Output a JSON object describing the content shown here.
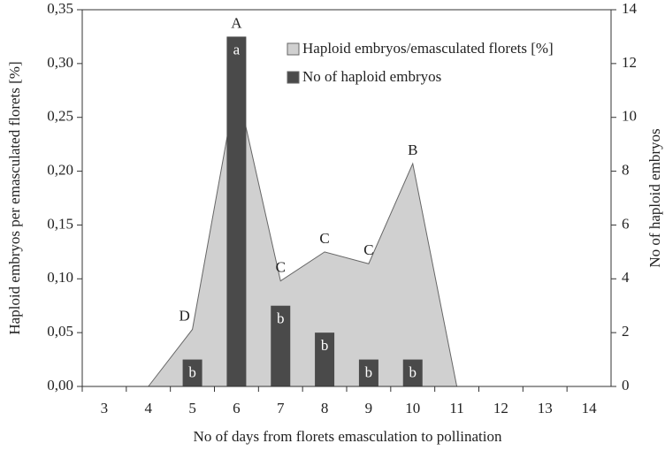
{
  "chart_data": {
    "type": "bar-area",
    "x_label": "No of days from florets emasculation to pollination",
    "y_label": "Haploid embryos per emasculated florets [%]",
    "y2_label": "No of haploid embryos",
    "categories": [
      "3",
      "4",
      "5",
      "6",
      "7",
      "8",
      "9",
      "10",
      "11",
      "12",
      "13",
      "14"
    ],
    "series": [
      {
        "name": "Haploid embryos/emasculated florets [%]",
        "kind": "area",
        "color": "#d0d0d0",
        "values": [
          null,
          0,
          0.053,
          0.28,
          0.098,
          0.125,
          0.114,
          0.207,
          0,
          null,
          null,
          null
        ]
      },
      {
        "name": "No of haploid embryos",
        "kind": "bar",
        "axis": "y2",
        "color": "#4a4a4a",
        "values": [
          0,
          0,
          1,
          13,
          3,
          2,
          1,
          1,
          0,
          0,
          0,
          0
        ]
      }
    ],
    "area_letters": [
      {
        "category": "5",
        "text": "D"
      },
      {
        "category": "6",
        "text": "A"
      },
      {
        "category": "7",
        "text": "C"
      },
      {
        "category": "8",
        "text": "C"
      },
      {
        "category": "9",
        "text": "C"
      },
      {
        "category": "10",
        "text": "B"
      }
    ],
    "bar_letters": [
      {
        "category": "5",
        "text": "b"
      },
      {
        "category": "6",
        "text": "a"
      },
      {
        "category": "7",
        "text": "b"
      },
      {
        "category": "8",
        "text": "b"
      },
      {
        "category": "9",
        "text": "b"
      },
      {
        "category": "10",
        "text": "b"
      }
    ],
    "ylim": [
      0,
      0.35
    ],
    "yticks": [
      {
        "value": 0,
        "label": "0,00"
      },
      {
        "value": 0.05,
        "label": "0,05"
      },
      {
        "value": 0.1,
        "label": "0,10"
      },
      {
        "value": 0.15,
        "label": "0,15"
      },
      {
        "value": 0.2,
        "label": "0,20"
      },
      {
        "value": 0.25,
        "label": "0,25"
      },
      {
        "value": 0.3,
        "label": "0,30"
      },
      {
        "value": 0.35,
        "label": "0,35"
      }
    ],
    "y2lim": [
      0,
      14
    ],
    "y2ticks": [
      0,
      2,
      4,
      6,
      8,
      10,
      12,
      14
    ],
    "legend": "top-right"
  }
}
